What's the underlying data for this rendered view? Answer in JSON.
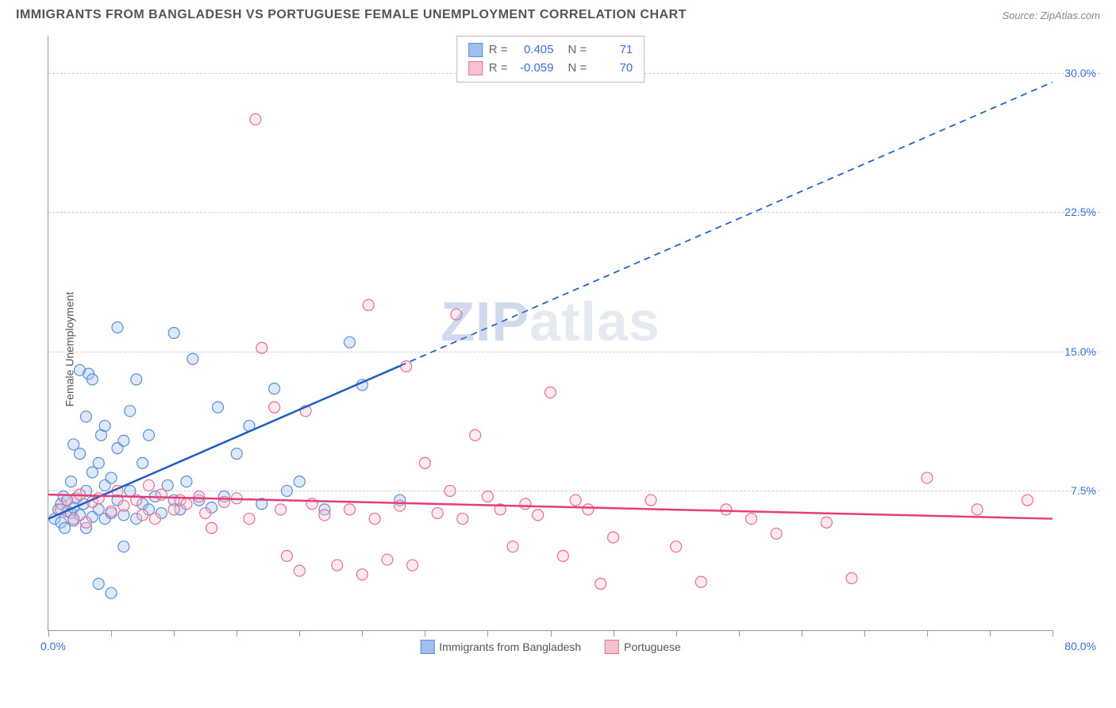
{
  "header": {
    "title": "IMMIGRANTS FROM BANGLADESH VS PORTUGUESE FEMALE UNEMPLOYMENT CORRELATION CHART",
    "source_prefix": "Source: ",
    "source": "ZipAtlas.com"
  },
  "chart": {
    "type": "scatter",
    "y_axis_label": "Female Unemployment",
    "watermark": "ZIPatlas",
    "background_color": "#ffffff",
    "grid_color": "#cccccc",
    "axis_color": "#999999",
    "xlim": [
      0,
      80
    ],
    "ylim": [
      0,
      32
    ],
    "y_ticks": [
      7.5,
      15.0,
      22.5,
      30.0
    ],
    "y_tick_labels": [
      "7.5%",
      "15.0%",
      "22.5%",
      "30.0%"
    ],
    "x_tick_positions": [
      0,
      5,
      10,
      15,
      20,
      25,
      30,
      35,
      40,
      45,
      50,
      55,
      60,
      65,
      70,
      75,
      80
    ],
    "x_origin_label": "0.0%",
    "x_max_label": "80.0%",
    "point_radius": 7,
    "point_stroke_width": 1.2,
    "point_fill_opacity": 0.35,
    "series": [
      {
        "key": "bangladesh",
        "label": "Immigrants from Bangladesh",
        "fill_color": "#9fc0ea",
        "stroke_color": "#5a8fd6",
        "regression_color": "#1f5fc4",
        "regression_width": 2.5,
        "regression": {
          "x1": 0,
          "y1": 6.0,
          "x2": 80,
          "y2": 29.5,
          "solid_until_x": 28
        },
        "R": "0.405",
        "N": "71",
        "points": [
          [
            0.5,
            6.0
          ],
          [
            0.8,
            6.5
          ],
          [
            1.0,
            5.8
          ],
          [
            1.0,
            6.8
          ],
          [
            1.2,
            7.2
          ],
          [
            1.3,
            5.5
          ],
          [
            1.5,
            6.4
          ],
          [
            1.5,
            7.0
          ],
          [
            1.8,
            6.3
          ],
          [
            1.8,
            8.0
          ],
          [
            2.0,
            5.9
          ],
          [
            2.0,
            6.6
          ],
          [
            2.0,
            10.0
          ],
          [
            2.2,
            7.1
          ],
          [
            2.5,
            6.2
          ],
          [
            2.5,
            9.5
          ],
          [
            2.5,
            14.0
          ],
          [
            2.8,
            6.8
          ],
          [
            3.0,
            5.5
          ],
          [
            3.0,
            7.5
          ],
          [
            3.0,
            11.5
          ],
          [
            3.2,
            13.8
          ],
          [
            3.5,
            6.1
          ],
          [
            3.5,
            8.5
          ],
          [
            3.5,
            13.5
          ],
          [
            4.0,
            6.5
          ],
          [
            4.0,
            9.0
          ],
          [
            4.0,
            2.5
          ],
          [
            4.2,
            10.5
          ],
          [
            4.5,
            6.0
          ],
          [
            4.5,
            7.8
          ],
          [
            4.5,
            11.0
          ],
          [
            5.0,
            2.0
          ],
          [
            5.0,
            6.3
          ],
          [
            5.0,
            8.2
          ],
          [
            5.5,
            7.0
          ],
          [
            5.5,
            9.8
          ],
          [
            5.5,
            16.3
          ],
          [
            6.0,
            4.5
          ],
          [
            6.0,
            6.2
          ],
          [
            6.0,
            10.2
          ],
          [
            6.5,
            7.5
          ],
          [
            6.5,
            11.8
          ],
          [
            7.0,
            6.0
          ],
          [
            7.0,
            13.5
          ],
          [
            7.5,
            6.8
          ],
          [
            7.5,
            9.0
          ],
          [
            8.0,
            6.5
          ],
          [
            8.0,
            10.5
          ],
          [
            8.5,
            7.2
          ],
          [
            9.0,
            6.3
          ],
          [
            9.5,
            7.8
          ],
          [
            10.0,
            7.0
          ],
          [
            10.0,
            16.0
          ],
          [
            10.5,
            6.5
          ],
          [
            11.0,
            8.0
          ],
          [
            11.5,
            14.6
          ],
          [
            12.0,
            7.0
          ],
          [
            13.0,
            6.6
          ],
          [
            13.5,
            12.0
          ],
          [
            14.0,
            7.2
          ],
          [
            15.0,
            9.5
          ],
          [
            16.0,
            11.0
          ],
          [
            17.0,
            6.8
          ],
          [
            18.0,
            13.0
          ],
          [
            19.0,
            7.5
          ],
          [
            20.0,
            8.0
          ],
          [
            22.0,
            6.5
          ],
          [
            24.0,
            15.5
          ],
          [
            25.0,
            13.2
          ],
          [
            28.0,
            7.0
          ]
        ]
      },
      {
        "key": "portuguese",
        "label": "Portuguese",
        "fill_color": "#f5c2d0",
        "stroke_color": "#e86d94",
        "regression_color": "#e63c78",
        "regression_width": 2.5,
        "regression": {
          "x1": 0,
          "y1": 7.3,
          "x2": 80,
          "y2": 6.0,
          "solid_until_x": 80
        },
        "R": "-0.059",
        "N": "70",
        "points": [
          [
            1.0,
            6.5
          ],
          [
            1.5,
            7.0
          ],
          [
            2.0,
            6.0
          ],
          [
            2.5,
            7.3
          ],
          [
            3.0,
            5.8
          ],
          [
            3.5,
            6.9
          ],
          [
            4.0,
            7.1
          ],
          [
            5.0,
            6.4
          ],
          [
            5.5,
            7.5
          ],
          [
            6.0,
            6.7
          ],
          [
            7.0,
            7.0
          ],
          [
            7.5,
            6.2
          ],
          [
            8.0,
            7.8
          ],
          [
            8.5,
            6.0
          ],
          [
            9.0,
            7.3
          ],
          [
            10.0,
            6.5
          ],
          [
            10.5,
            7.0
          ],
          [
            11.0,
            6.8
          ],
          [
            12.0,
            7.2
          ],
          [
            12.5,
            6.3
          ],
          [
            13.0,
            5.5
          ],
          [
            14.0,
            6.9
          ],
          [
            15.0,
            7.1
          ],
          [
            16.0,
            6.0
          ],
          [
            16.5,
            27.5
          ],
          [
            17.0,
            15.2
          ],
          [
            18.0,
            12.0
          ],
          [
            18.5,
            6.5
          ],
          [
            19.0,
            4.0
          ],
          [
            20.0,
            3.2
          ],
          [
            20.5,
            11.8
          ],
          [
            21.0,
            6.8
          ],
          [
            22.0,
            6.2
          ],
          [
            23.0,
            3.5
          ],
          [
            24.0,
            6.5
          ],
          [
            25.0,
            3.0
          ],
          [
            25.5,
            17.5
          ],
          [
            26.0,
            6.0
          ],
          [
            27.0,
            3.8
          ],
          [
            28.0,
            6.7
          ],
          [
            28.5,
            14.2
          ],
          [
            29.0,
            3.5
          ],
          [
            30.0,
            9.0
          ],
          [
            31.0,
            6.3
          ],
          [
            32.0,
            7.5
          ],
          [
            32.5,
            17.0
          ],
          [
            33.0,
            6.0
          ],
          [
            34.0,
            10.5
          ],
          [
            35.0,
            7.2
          ],
          [
            36.0,
            6.5
          ],
          [
            37.0,
            4.5
          ],
          [
            38.0,
            6.8
          ],
          [
            39.0,
            6.2
          ],
          [
            40.0,
            12.8
          ],
          [
            41.0,
            4.0
          ],
          [
            42.0,
            7.0
          ],
          [
            43.0,
            6.5
          ],
          [
            44.0,
            2.5
          ],
          [
            45.0,
            5.0
          ],
          [
            48.0,
            7.0
          ],
          [
            50.0,
            4.5
          ],
          [
            52.0,
            2.6
          ],
          [
            54.0,
            6.5
          ],
          [
            56.0,
            6.0
          ],
          [
            58.0,
            5.2
          ],
          [
            62.0,
            5.8
          ],
          [
            64.0,
            2.8
          ],
          [
            70.0,
            8.2
          ],
          [
            74.0,
            6.5
          ],
          [
            78.0,
            7.0
          ]
        ]
      }
    ],
    "stats_box": {
      "r_label": "R =",
      "n_label": "N ="
    },
    "legend_swatch_border": {
      "bangladesh": "#5a8fd6",
      "portuguese": "#e86d94"
    }
  }
}
